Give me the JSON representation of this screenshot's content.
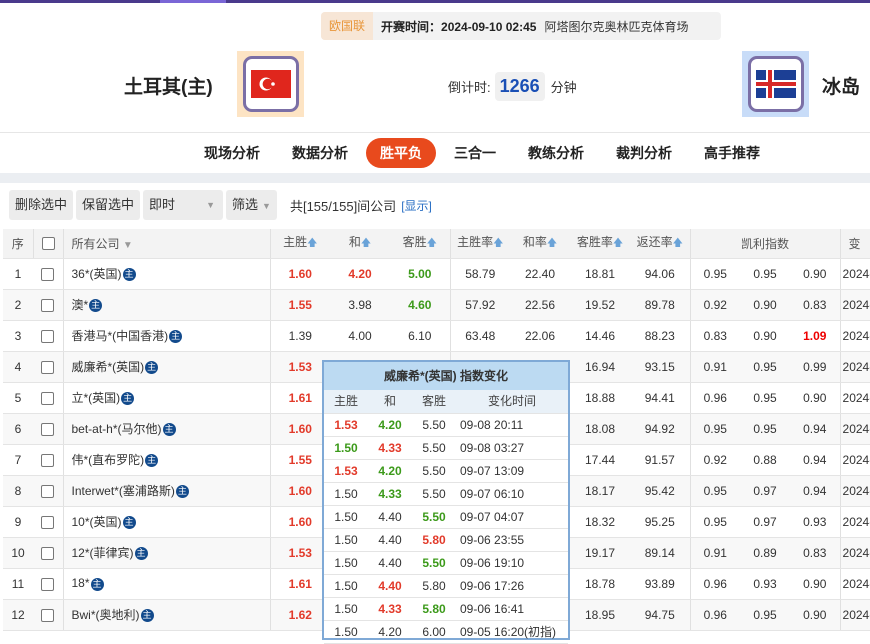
{
  "match": {
    "league": "欧国联",
    "time_label": "开赛时间：2024-09-10 02:45",
    "venue": "阿塔图尔克奥林匹克体育场",
    "home": "土耳其(主)",
    "away": "冰岛",
    "countdown_label": "倒计时:",
    "countdown_value": "1266",
    "countdown_unit": "分钟"
  },
  "nav": [
    "现场分析",
    "数据分析",
    "胜平负",
    "三合一",
    "教练分析",
    "裁判分析",
    "高手推荐"
  ],
  "nav_active": "胜平负",
  "toolbar": {
    "delete": "删除选中",
    "keep": "保留选中",
    "mode": "即时",
    "filter": "筛选",
    "summary": "共[155/155]间公司",
    "show": "[显示]"
  },
  "headers": {
    "no": "序",
    "company": "所有公司",
    "home": "主胜",
    "draw": "和",
    "away": "客胜",
    "home_rate": "主胜率",
    "draw_rate": "和率",
    "away_rate": "客胜率",
    "return": "返还率",
    "kelly": "凯利指数",
    "change": "变"
  },
  "zhu_label": "主",
  "rows": [
    {
      "no": "1",
      "company": "36*(英国)",
      "h": "1.60",
      "hc": "r",
      "d": "4.20",
      "dc": "r",
      "a": "5.00",
      "ac": "g",
      "hr": "58.79",
      "dr": "22.40",
      "ar": "18.81",
      "ret": "94.06",
      "k": [
        "0.95",
        "0.95",
        "0.90"
      ],
      "t": "2024-"
    },
    {
      "no": "2",
      "company": "澳*",
      "h": "1.55",
      "hc": "r",
      "d": "3.98",
      "dc": "",
      "a": "4.60",
      "ac": "g",
      "hr": "57.92",
      "dr": "22.56",
      "ar": "19.52",
      "ret": "89.78",
      "k": [
        "0.92",
        "0.90",
        "0.83"
      ],
      "t": "2024-"
    },
    {
      "no": "3",
      "company": "香港马*(中国香港)",
      "h": "1.39",
      "hc": "",
      "d": "4.00",
      "dc": "",
      "a": "6.10",
      "ac": "",
      "hr": "63.48",
      "dr": "22.06",
      "ar": "14.46",
      "ret": "88.23",
      "k": [
        "0.83",
        "0.90",
        "1.09"
      ],
      "kr": true,
      "t": "2024-"
    },
    {
      "no": "4",
      "company": "威廉希*(英国)",
      "h": "1.53",
      "hc": "r",
      "ar": "16.94",
      "ret": "93.15",
      "k": [
        "0.91",
        "0.95",
        "0.99"
      ],
      "t": "2024-"
    },
    {
      "no": "5",
      "company": "立*(英国)",
      "h": "1.61",
      "hc": "r",
      "ar": "18.88",
      "ret": "94.41",
      "k": [
        "0.96",
        "0.95",
        "0.90"
      ],
      "t": "2024-"
    },
    {
      "no": "6",
      "company": "bet-at-h*(马尔他)",
      "h": "1.60",
      "hc": "r",
      "ar": "18.08",
      "ret": "94.92",
      "k": [
        "0.95",
        "0.95",
        "0.94"
      ],
      "t": "2024-"
    },
    {
      "no": "7",
      "company": "伟*(直布罗陀)",
      "h": "1.55",
      "hc": "r",
      "ar": "17.44",
      "ret": "91.57",
      "k": [
        "0.92",
        "0.88",
        "0.94"
      ],
      "t": "2024-"
    },
    {
      "no": "8",
      "company": "Interwet*(塞浦路斯)",
      "h": "1.60",
      "hc": "r",
      "ar": "18.17",
      "ret": "95.42",
      "k": [
        "0.95",
        "0.97",
        "0.94"
      ],
      "t": "2024-"
    },
    {
      "no": "9",
      "company": "10*(英国)",
      "h": "1.60",
      "hc": "r",
      "ar": "18.32",
      "ret": "95.25",
      "k": [
        "0.95",
        "0.97",
        "0.93"
      ],
      "t": "2024-"
    },
    {
      "no": "10",
      "company": "12*(菲律宾)",
      "h": "1.53",
      "hc": "r",
      "ar": "19.17",
      "ret": "89.14",
      "k": [
        "0.91",
        "0.89",
        "0.83"
      ],
      "t": "2024-"
    },
    {
      "no": "11",
      "company": "18*",
      "h": "1.61",
      "hc": "r",
      "ar": "18.78",
      "ret": "93.89",
      "k": [
        "0.96",
        "0.93",
        "0.90"
      ],
      "t": "2024-"
    },
    {
      "no": "12",
      "company": "Bwi*(奥地利)",
      "h": "1.62",
      "hc": "r",
      "ar": "18.95",
      "ret": "94.75",
      "k": [
        "0.96",
        "0.95",
        "0.90"
      ],
      "t": "2024-"
    }
  ],
  "popup": {
    "title": "威廉希*(英国) 指数变化",
    "headers": [
      "主胜",
      "和",
      "客胜",
      "变化时间"
    ],
    "rows": [
      {
        "h": "1.53",
        "hc": "r",
        "d": "4.20",
        "dc": "g",
        "a": "5.50",
        "ac": "",
        "t": "09-08 20:11"
      },
      {
        "h": "1.50",
        "hc": "g",
        "d": "4.33",
        "dc": "r",
        "a": "5.50",
        "ac": "",
        "t": "09-08 03:27"
      },
      {
        "h": "1.53",
        "hc": "r",
        "d": "4.20",
        "dc": "g",
        "a": "5.50",
        "ac": "",
        "t": "09-07 13:09"
      },
      {
        "h": "1.50",
        "hc": "",
        "d": "4.33",
        "dc": "g",
        "a": "5.50",
        "ac": "",
        "t": "09-07 06:10"
      },
      {
        "h": "1.50",
        "hc": "",
        "d": "4.40",
        "dc": "",
        "a": "5.50",
        "ac": "g",
        "t": "09-07 04:07"
      },
      {
        "h": "1.50",
        "hc": "",
        "d": "4.40",
        "dc": "",
        "a": "5.80",
        "ac": "r",
        "t": "09-06 23:55"
      },
      {
        "h": "1.50",
        "hc": "",
        "d": "4.40",
        "dc": "",
        "a": "5.50",
        "ac": "g",
        "t": "09-06 19:10"
      },
      {
        "h": "1.50",
        "hc": "",
        "d": "4.40",
        "dc": "r",
        "a": "5.80",
        "ac": "",
        "t": "09-06 17:26"
      },
      {
        "h": "1.50",
        "hc": "",
        "d": "4.33",
        "dc": "r",
        "a": "5.80",
        "ac": "g",
        "t": "09-06 16:41"
      },
      {
        "h": "1.50",
        "hc": "",
        "d": "4.20",
        "dc": "",
        "a": "6.00",
        "ac": "",
        "t": "09-05 16:20(初指)"
      }
    ]
  },
  "colors": {
    "accent": "#e84a1d",
    "up": "#e23a2a",
    "down": "#3c9a1a",
    "countdown": "#1a4fb5",
    "popup_border": "#7fa9d6"
  }
}
